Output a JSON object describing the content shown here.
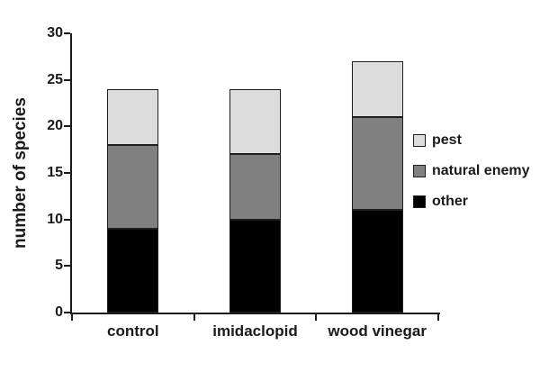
{
  "chart_data": {
    "type": "bar",
    "stacked": true,
    "title": "",
    "xlabel": "",
    "ylabel": "number of species",
    "categories": [
      "control",
      "imidaclopid",
      "wood vinegar"
    ],
    "series": [
      {
        "name": "other",
        "color": "#000000",
        "values": [
          9,
          10,
          11
        ]
      },
      {
        "name": "natural enemy",
        "color": "#808080",
        "values": [
          9,
          7,
          10
        ]
      },
      {
        "name": "pest",
        "color": "#dcdcdc",
        "values": [
          6,
          7,
          6
        ]
      }
    ],
    "totals": [
      24,
      24,
      27
    ],
    "ylim": [
      0,
      30
    ],
    "yticks": [
      0,
      5,
      10,
      15,
      20,
      25,
      30
    ],
    "grid": false,
    "bar_border_color": "#1f1f1f",
    "legend": {
      "position": "right",
      "items": [
        {
          "label": "pest",
          "color": "#dcdcdc"
        },
        {
          "label": "natural enemy",
          "color": "#808080"
        },
        {
          "label": "other",
          "color": "#000000"
        }
      ]
    }
  }
}
